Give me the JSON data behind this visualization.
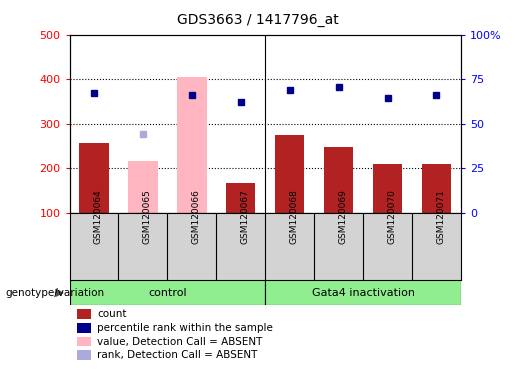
{
  "title": "GDS3663 / 1417796_at",
  "samples": [
    "GSM120064",
    "GSM120065",
    "GSM120066",
    "GSM120067",
    "GSM120068",
    "GSM120069",
    "GSM120070",
    "GSM120071"
  ],
  "count_values": [
    258,
    null,
    null,
    167,
    275,
    247,
    210,
    210
  ],
  "absent_bar_values": [
    null,
    216,
    405,
    null,
    null,
    null,
    null,
    null
  ],
  "percentile_rank": [
    370,
    null,
    365,
    348,
    375,
    383,
    358,
    365
  ],
  "absent_rank": [
    null,
    278,
    null,
    null,
    null,
    null,
    null,
    null
  ],
  "ylim_left": [
    100,
    500
  ],
  "ylim_right": [
    0,
    100
  ],
  "yticks_left": [
    100,
    200,
    300,
    400,
    500
  ],
  "yticks_right": [
    0,
    25,
    50,
    75,
    100
  ],
  "ytick_right_labels": [
    "0",
    "25",
    "50",
    "75",
    "100%"
  ],
  "grid_lines": [
    200,
    300,
    400
  ],
  "bar_color_red": "#b22222",
  "bar_color_pink": "#ffb6c1",
  "dot_color_blue": "#00008b",
  "dot_color_lightblue": "#aaaadd",
  "control_label": "control",
  "gata4_label": "Gata4 inactivation",
  "group_label": "genotype/variation",
  "legend_items": [
    {
      "color": "#b22222",
      "label": "count"
    },
    {
      "color": "#00008b",
      "label": "percentile rank within the sample"
    },
    {
      "color": "#ffb6c1",
      "label": "value, Detection Call = ABSENT"
    },
    {
      "color": "#aaaadd",
      "label": "rank, Detection Call = ABSENT"
    }
  ],
  "sample_bg": "#d3d3d3",
  "group_bg": "#90ee90",
  "plot_bg": "#ffffff"
}
